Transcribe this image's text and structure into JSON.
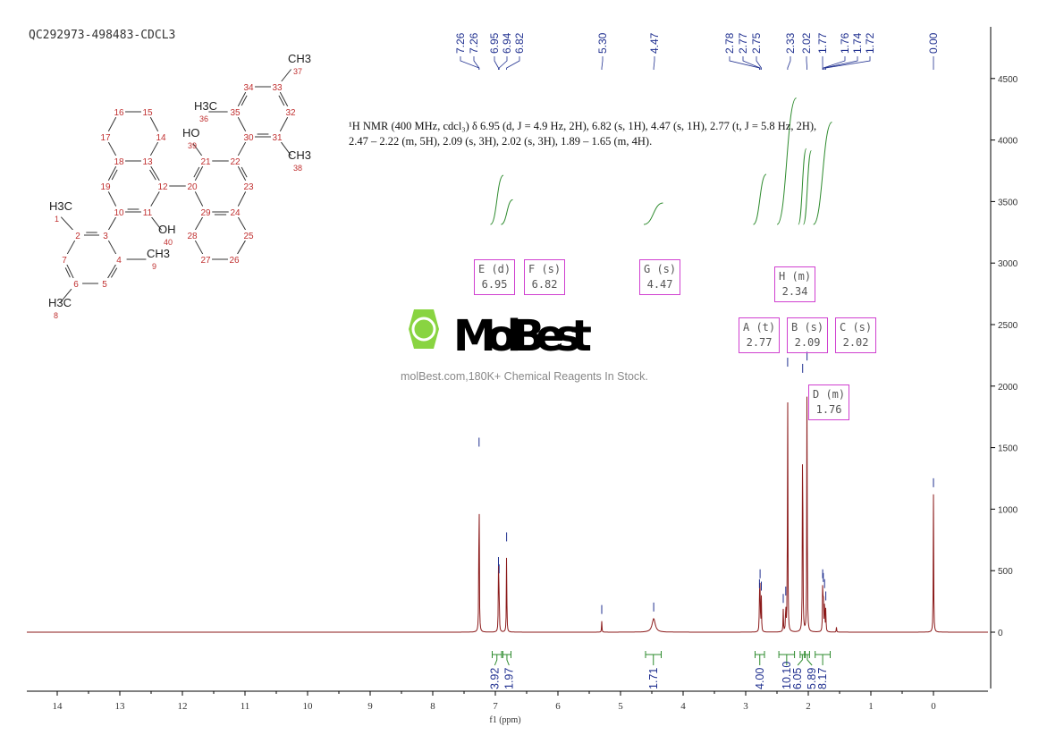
{
  "sample_id": "QC292973-498483-CDCL3",
  "description": {
    "line1": "¹H NMR (400 MHz, cdcl₃) δ 6.95 (d, J = 4.9 Hz, 2H), 6.82 (s, 1H), 4.47 (s, 1H), 2.77 (t, J = 5.8 Hz, 2H),",
    "line2": "2.47 – 2.22 (m, 5H), 2.09 (s, 3H), 2.02 (s, 3H), 1.89 – 1.65 (m, 4H)."
  },
  "watermark": {
    "logo": "MolBest",
    "text": "molBest.com,180K+ Chemical Reagents In Stock."
  },
  "structure": {
    "atoms": [
      "1",
      "2",
      "3",
      "4",
      "5",
      "6",
      "7",
      "8",
      "9",
      "10",
      "11",
      "12",
      "13",
      "14",
      "15",
      "16",
      "17",
      "18",
      "19",
      "20",
      "21",
      "22",
      "23",
      "24",
      "25",
      "26",
      "27",
      "28",
      "29",
      "30",
      "31",
      "32",
      "33",
      "34",
      "35",
      "36",
      "37",
      "38",
      "39",
      "40"
    ],
    "groups": {
      "g1": "H3C",
      "g8": "H3C",
      "g9": "CH3",
      "g36": "H3C",
      "g37": "CH3",
      "g38": "CH3",
      "g39": "HO",
      "g40": "OH"
    }
  },
  "multiplets": [
    {
      "label": "F (s)",
      "shift": "6.82"
    },
    {
      "label": "E (d)",
      "shift": "6.95"
    },
    {
      "label": "G (s)",
      "shift": "4.47"
    },
    {
      "label": "A (t)",
      "shift": "2.77"
    },
    {
      "label": "B (s)",
      "shift": "2.09"
    },
    {
      "label": "C (s)",
      "shift": "2.02"
    },
    {
      "label": "H (m)",
      "shift": "2.34"
    },
    {
      "label": "D (m)",
      "shift": "1.76"
    }
  ],
  "chart_data": {
    "type": "line",
    "xlabel": "f1 (ppm)",
    "xlim": [
      14.5,
      -0.9
    ],
    "ylim": [
      -500,
      4800
    ],
    "x_reversed": true,
    "x_ticks": [
      "14",
      "13",
      "12",
      "11",
      "10",
      "9",
      "8",
      "7",
      "6",
      "5",
      "4",
      "3",
      "2",
      "1",
      "0"
    ],
    "y_ticks": [
      "0",
      "500",
      "1000",
      "1500",
      "2000",
      "2500",
      "3000",
      "3500",
      "4000",
      "4500"
    ],
    "peak_labels": [
      "7.26",
      "7.26",
      "6.95",
      "6.94",
      "6.82",
      "5.30",
      "4.47",
      "2.78",
      "2.77",
      "2.75",
      "2.33",
      "2.02",
      "1.77",
      "1.76",
      "1.74",
      "1.72",
      "0.00"
    ],
    "peaks": [
      {
        "ppm": 7.26,
        "intensity": 1450
      },
      {
        "ppm": 6.95,
        "intensity": 480
      },
      {
        "ppm": 6.94,
        "intensity": 420
      },
      {
        "ppm": 6.82,
        "intensity": 680
      },
      {
        "ppm": 5.3,
        "intensity": 90
      },
      {
        "ppm": 4.47,
        "intensity": 110
      },
      {
        "ppm": 2.78,
        "intensity": 300
      },
      {
        "ppm": 2.77,
        "intensity": 380
      },
      {
        "ppm": 2.75,
        "intensity": 280
      },
      {
        "ppm": 2.4,
        "intensity": 180
      },
      {
        "ppm": 2.36,
        "intensity": 240
      },
      {
        "ppm": 2.33,
        "intensity": 2100
      },
      {
        "ppm": 2.09,
        "intensity": 2050
      },
      {
        "ppm": 2.02,
        "intensity": 2150
      },
      {
        "ppm": 1.77,
        "intensity": 380
      },
      {
        "ppm": 1.76,
        "intensity": 350
      },
      {
        "ppm": 1.74,
        "intensity": 300
      },
      {
        "ppm": 1.72,
        "intensity": 200
      },
      {
        "ppm": 1.55,
        "intensity": 40
      },
      {
        "ppm": 0.0,
        "intensity": 1120
      }
    ],
    "integrals": [
      {
        "from": 7.05,
        "to": 6.9,
        "value": "3.92"
      },
      {
        "from": 6.88,
        "to": 6.75,
        "value": "1.97"
      },
      {
        "from": 4.6,
        "to": 4.35,
        "value": "1.71"
      },
      {
        "from": 2.85,
        "to": 2.7,
        "value": "4.00"
      },
      {
        "from": 2.47,
        "to": 2.22,
        "value": "10.10"
      },
      {
        "from": 2.13,
        "to": 2.06,
        "value": "6.05"
      },
      {
        "from": 2.05,
        "to": 1.98,
        "value": "5.89"
      },
      {
        "from": 1.89,
        "to": 1.65,
        "value": "8.17"
      }
    ],
    "colors": {
      "spectrum": "#8b1a1a",
      "integral": "#2e8b2e",
      "labels": "#1f2f8f",
      "boxes": "#d040d0"
    }
  }
}
